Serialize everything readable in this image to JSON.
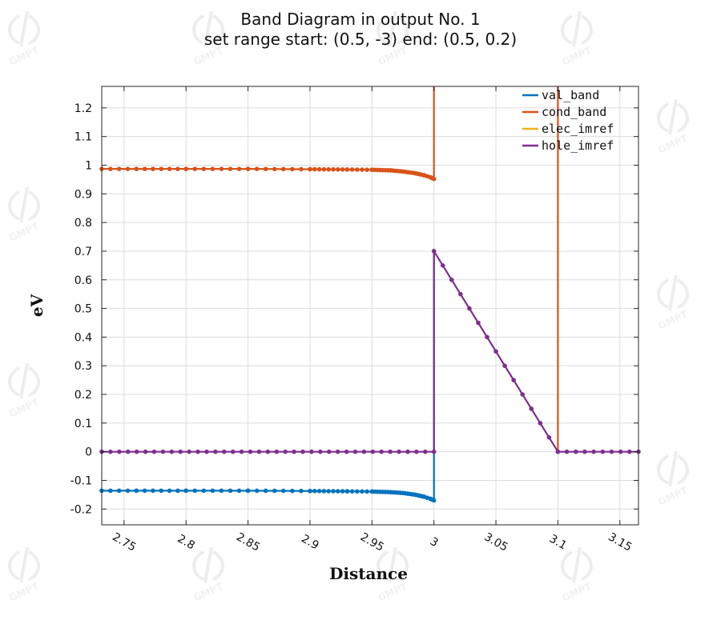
{
  "watermark_text": "GMPT",
  "chart_data": {
    "type": "line",
    "title": [
      "Band Diagram in output No. 1",
      "set range start: (0.5, -3) end: (0.5, 0.2)"
    ],
    "xlabel": "Distance",
    "ylabel": "eV",
    "xlim": [
      2.732,
      3.165
    ],
    "ylim": [
      -0.255,
      1.275
    ],
    "xticks": [
      2.75,
      2.8,
      2.85,
      2.9,
      2.95,
      3,
      3.05,
      3.1,
      3.15
    ],
    "xtick_labels": [
      "2.75",
      "2.8",
      "2.85",
      "2.9",
      "2.95",
      "3",
      "3.05",
      "3.1",
      "3.15"
    ],
    "yticks": [
      -0.2,
      -0.1,
      0,
      0.1,
      0.2,
      0.3,
      0.4,
      0.5,
      0.6,
      0.7,
      0.8,
      0.9,
      1,
      1.1,
      1.2
    ],
    "ytick_labels": [
      "-0.2",
      "-0.1",
      "0",
      "0.1",
      "0.2",
      "0.3",
      "0.4",
      "0.5",
      "0.6",
      "0.7",
      "0.8",
      "0.9",
      "1",
      "1.1",
      "1.2"
    ],
    "grid": true,
    "legend_position": "top-right",
    "series": [
      {
        "name": "val_band",
        "color": "#0072BD",
        "points": [
          [
            2.732,
            -0.136
          ],
          [
            2.76,
            -0.136
          ],
          [
            2.8,
            -0.136
          ],
          [
            2.85,
            -0.136
          ],
          [
            2.9,
            -0.137
          ],
          [
            2.93,
            -0.138
          ],
          [
            2.95,
            -0.139
          ],
          [
            2.965,
            -0.141
          ],
          [
            2.975,
            -0.144
          ],
          [
            2.985,
            -0.15
          ],
          [
            2.992,
            -0.157
          ],
          [
            2.997,
            -0.164
          ],
          [
            3.0,
            -0.17
          ],
          [
            3.0,
            0.7
          ]
        ],
        "markers": true
      },
      {
        "name": "cond_band",
        "color": "#D95319",
        "points": [
          [
            2.732,
            0.987
          ],
          [
            2.76,
            0.987
          ],
          [
            2.8,
            0.987
          ],
          [
            2.85,
            0.987
          ],
          [
            2.9,
            0.986
          ],
          [
            2.93,
            0.985
          ],
          [
            2.95,
            0.984
          ],
          [
            2.965,
            0.982
          ],
          [
            2.975,
            0.978
          ],
          [
            2.985,
            0.972
          ],
          [
            2.992,
            0.965
          ],
          [
            2.997,
            0.958
          ],
          [
            3.0,
            0.952
          ],
          [
            3.0,
            1.275
          ]
        ],
        "extra_segments": [
          [
            [
              3.1,
              0.0
            ],
            [
              3.1,
              1.275
            ]
          ]
        ],
        "markers": true
      },
      {
        "name": "elec_imref",
        "color": "#EDB120",
        "points": [],
        "markers": false
      },
      {
        "name": "hole_imref",
        "color": "#7E2F8E",
        "points": [
          [
            2.732,
            0.0
          ],
          [
            3.0,
            0.0
          ],
          [
            3.0,
            0.7
          ],
          [
            3.1,
            0.0
          ],
          [
            3.165,
            0.0
          ]
        ],
        "markers": true
      }
    ]
  }
}
